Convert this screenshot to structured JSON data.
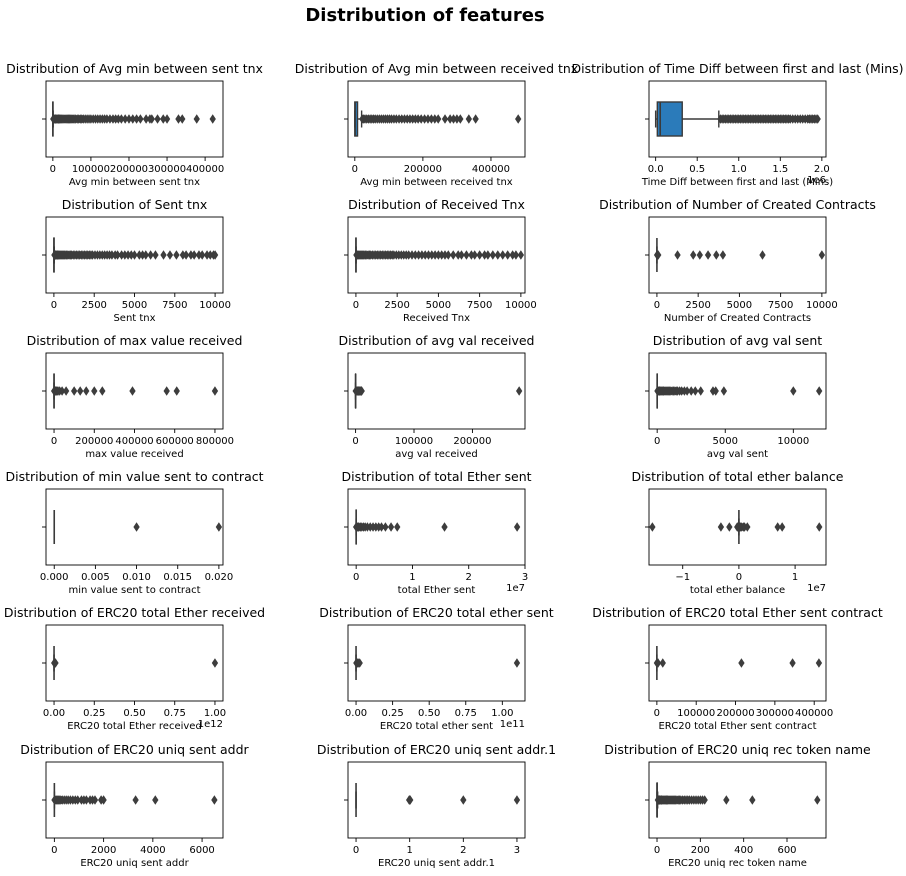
{
  "figure_title": "Distribution of features",
  "colors": {
    "box_fill": "#2b7bba",
    "box_line": "#3a3a3a",
    "flier": "#3d3d3d",
    "axis": "#000000"
  },
  "chart_data": [
    {
      "type": "boxplot",
      "orientation": "horizontal",
      "title": "Distribution of Avg min between sent tnx",
      "xlabel": "Avg min between sent tnx",
      "xlim": [
        -18000,
        447000
      ],
      "ticks": [
        0,
        100000,
        200000,
        300000,
        400000
      ],
      "tick_labels": [
        "0",
        "100000",
        "200000",
        "300000",
        "400000"
      ],
      "box": {
        "q1": 0,
        "median": 5,
        "q3": 300,
        "whisker_low": 0,
        "whisker_high": 800
      },
      "fliers": [
        1000,
        2500,
        4000,
        6000,
        8000,
        10000,
        12000,
        14000,
        16000,
        18000,
        20000,
        23000,
        26000,
        29000,
        32000,
        35000,
        38000,
        41000,
        44000,
        47000,
        50000,
        53000,
        56000,
        60000,
        64000,
        68000,
        72000,
        76000,
        80000,
        85000,
        90000,
        95000,
        100000,
        106000,
        112000,
        118000,
        124000,
        130000,
        136000,
        142000,
        150000,
        158000,
        165000,
        172000,
        180000,
        190000,
        200000,
        210000,
        220000,
        230000,
        245000,
        255000,
        260000,
        275000,
        290000,
        300000,
        330000,
        340000,
        378000,
        420000
      ]
    },
    {
      "type": "boxplot",
      "orientation": "horizontal",
      "title": "Distribution of Avg min between received tnx",
      "xlabel": "Avg min between received tnx",
      "xlim": [
        -20000,
        500000
      ],
      "ticks": [
        0,
        200000,
        400000
      ],
      "tick_labels": [
        "0",
        "200000",
        "400000"
      ],
      "box": {
        "q1": 0,
        "median": 1000,
        "q3": 8000,
        "whisker_low": 0,
        "whisker_high": 20000
      },
      "fliers": [
        22000,
        26000,
        30000,
        35000,
        40000,
        45000,
        50000,
        55000,
        60000,
        66000,
        72000,
        78000,
        84000,
        90000,
        96000,
        102000,
        108000,
        115000,
        122000,
        130000,
        138000,
        146000,
        154000,
        162000,
        170000,
        178000,
        186000,
        195000,
        205000,
        215000,
        225000,
        235000,
        245000,
        265000,
        280000,
        290000,
        300000,
        310000,
        335000,
        355000,
        480000
      ]
    },
    {
      "type": "boxplot",
      "orientation": "horizontal",
      "title": "Distribution of Time Diff between first and last (Mins)",
      "xlabel": "Time Diff between first and last (Mins)",
      "xlim": [
        -80000,
        2050000
      ],
      "ticks": [
        0,
        500000,
        1000000,
        1500000,
        2000000
      ],
      "tick_labels": [
        "0.0",
        "0.5",
        "1.0",
        "1.5",
        "2.0"
      ],
      "offset_label": "1e6",
      "box": {
        "q1": 20000,
        "median": 55000,
        "q3": 320000,
        "whisker_low": 0,
        "whisker_high": 760000
      },
      "fliers": [
        780000,
        800000,
        820000,
        840000,
        860000,
        880000,
        900000,
        920000,
        940000,
        960000,
        980000,
        1000000,
        1020000,
        1040000,
        1060000,
        1080000,
        1100000,
        1120000,
        1140000,
        1160000,
        1180000,
        1200000,
        1220000,
        1240000,
        1260000,
        1280000,
        1300000,
        1320000,
        1340000,
        1360000,
        1380000,
        1400000,
        1420000,
        1440000,
        1460000,
        1480000,
        1500000,
        1520000,
        1540000,
        1560000,
        1580000,
        1600000,
        1620000,
        1650000,
        1680000,
        1710000,
        1740000,
        1770000,
        1800000,
        1830000,
        1850000,
        1870000,
        1890000,
        1910000,
        1930000,
        1950000
      ]
    },
    {
      "type": "boxplot",
      "orientation": "horizontal",
      "title": "Distribution of Sent tnx",
      "xlabel": "Sent tnx",
      "xlim": [
        -490,
        10490
      ],
      "ticks": [
        0,
        2500,
        5000,
        7500,
        10000
      ],
      "tick_labels": [
        "0",
        "2500",
        "5000",
        "7500",
        "10000"
      ],
      "box": {
        "q1": 1,
        "median": 3,
        "q3": 10,
        "whisker_low": 0,
        "whisker_high": 25
      },
      "fliers": [
        30,
        50,
        80,
        120,
        160,
        200,
        250,
        300,
        350,
        400,
        460,
        520,
        580,
        640,
        700,
        780,
        860,
        940,
        1020,
        1100,
        1200,
        1300,
        1400,
        1500,
        1600,
        1700,
        1800,
        1900,
        2000,
        2100,
        2200,
        2300,
        2400,
        2550,
        2700,
        2850,
        3000,
        3150,
        3300,
        3450,
        3600,
        3800,
        3950,
        4200,
        4400,
        4600,
        4800,
        5000,
        5300,
        5500,
        5700,
        6000,
        6300,
        6800,
        7200,
        7600,
        8000,
        8200,
        8500,
        8700,
        9000,
        9200,
        9500,
        9700,
        9900,
        10000
      ]
    },
    {
      "type": "boxplot",
      "orientation": "horizontal",
      "title": "Distribution of Received Tnx",
      "xlabel": "Received Tnx",
      "xlim": [
        -480,
        10250
      ],
      "ticks": [
        0,
        2500,
        5000,
        7500,
        10000
      ],
      "tick_labels": [
        "0",
        "2500",
        "5000",
        "7500",
        "10000"
      ],
      "box": {
        "q1": 1,
        "median": 2,
        "q3": 6,
        "whisker_low": 0,
        "whisker_high": 15
      },
      "fliers": [
        30,
        60,
        100,
        150,
        200,
        260,
        320,
        380,
        440,
        500,
        580,
        660,
        740,
        820,
        900,
        1000,
        1100,
        1200,
        1300,
        1400,
        1500,
        1600,
        1700,
        1800,
        1900,
        2000,
        2100,
        2200,
        2300,
        2450,
        2600,
        2750,
        2900,
        3050,
        3200,
        3400,
        3600,
        3800,
        4000,
        4200,
        4400,
        4600,
        4800,
        5000,
        5200,
        5400,
        5600,
        5900,
        6200,
        6400,
        6700,
        7000,
        7200,
        7500,
        7800,
        8000,
        8300,
        8600,
        8900,
        9200,
        9500,
        9700,
        10000
      ]
    },
    {
      "type": "boxplot",
      "orientation": "horizontal",
      "title": "Distribution of Number of Created Contracts",
      "xlabel": "Number of Created Contracts",
      "xlim": [
        -480,
        10250
      ],
      "ticks": [
        0,
        2500,
        5000,
        7500,
        10000
      ],
      "tick_labels": [
        "0",
        "2500",
        "5000",
        "7500",
        "10000"
      ],
      "box": {
        "q1": 0,
        "median": 0,
        "q3": 0,
        "whisker_low": 0,
        "whisker_high": 0
      },
      "fliers": [
        10,
        40,
        80,
        1250,
        2200,
        2600,
        3100,
        3600,
        4000,
        6400,
        10000
      ]
    },
    {
      "type": "boxplot",
      "orientation": "horizontal",
      "title": "Distribution of max value received",
      "xlabel": "max value received",
      "xlim": [
        -40000,
        840000
      ],
      "ticks": [
        0,
        200000,
        400000,
        600000,
        800000
      ],
      "tick_labels": [
        "0",
        "200000",
        "400000",
        "600000",
        "800000"
      ],
      "box": {
        "q1": 0,
        "median": 1,
        "q3": 50,
        "whisker_low": 0,
        "whisker_high": 100
      },
      "fliers": [
        500,
        1500,
        3000,
        5000,
        8000,
        11000,
        15000,
        20000,
        28000,
        40000,
        60000,
        100000,
        130000,
        160000,
        200000,
        240000,
        390000,
        560000,
        610000,
        800000
      ]
    },
    {
      "type": "boxplot",
      "orientation": "horizontal",
      "title": "Distribution of avg val received",
      "xlabel": "avg val received",
      "xlim": [
        -13000,
        290000
      ],
      "ticks": [
        0,
        100000,
        200000
      ],
      "tick_labels": [
        "0",
        "100000",
        "200000"
      ],
      "box": {
        "q1": 0,
        "median": 1,
        "q3": 30,
        "whisker_low": 0,
        "whisker_high": 60
      },
      "fliers": [
        200,
        700,
        1500,
        2500,
        3500,
        4500,
        5500,
        6500,
        7500,
        8500,
        9500,
        10500,
        280000
      ]
    },
    {
      "type": "boxplot",
      "orientation": "horizontal",
      "title": "Distribution of avg val sent",
      "xlabel": "avg val sent",
      "xlim": [
        -600,
        12400
      ],
      "ticks": [
        0,
        5000,
        10000
      ],
      "tick_labels": [
        "0",
        "5000",
        "10000"
      ],
      "box": {
        "q1": 0,
        "median": 0,
        "q3": 5,
        "whisker_low": 0,
        "whisker_high": 10
      },
      "fliers": [
        20,
        50,
        100,
        150,
        200,
        260,
        320,
        380,
        440,
        500,
        580,
        660,
        740,
        820,
        900,
        1000,
        1100,
        1200,
        1300,
        1400,
        1500,
        1650,
        1800,
        2000,
        2200,
        2500,
        2800,
        3200,
        4100,
        4300,
        4900,
        10000,
        11900
      ]
    },
    {
      "type": "boxplot",
      "orientation": "horizontal",
      "title": "Distribution of min value sent to contract",
      "xlabel": "min value sent to contract",
      "xlim": [
        -0.001,
        0.0205
      ],
      "ticks": [
        0,
        0.005,
        0.01,
        0.015,
        0.02
      ],
      "tick_labels": [
        "0.000",
        "0.005",
        "0.010",
        "0.015",
        "0.020"
      ],
      "box": {
        "q1": 0,
        "median": 0,
        "q3": 0,
        "whisker_low": 0,
        "whisker_high": 0
      },
      "fliers": [
        0.01,
        0.02
      ]
    },
    {
      "type": "boxplot",
      "orientation": "horizontal",
      "title": "Distribution of total Ether sent",
      "xlabel": "total Ether sent",
      "xlim": [
        -1450000,
        30000000
      ],
      "ticks": [
        0,
        10000000,
        20000000,
        30000000
      ],
      "tick_labels": [
        "0",
        "1",
        "2",
        "3"
      ],
      "offset_label": "1e7",
      "box": {
        "q1": 0,
        "median": 5,
        "q3": 200,
        "whisker_low": 0,
        "whisker_high": 500
      },
      "fliers": [
        5000,
        30000,
        100000,
        200000,
        350000,
        500000,
        750000,
        1000000,
        1300000,
        1600000,
        2000000,
        2500000,
        3000000,
        3500000,
        4000000,
        4500000,
        5200000,
        6200000,
        7300000,
        15700000,
        28600000
      ]
    },
    {
      "type": "boxplot",
      "orientation": "horizontal",
      "title": "Distribution of total ether balance",
      "xlabel": "total ether balance",
      "xlim": [
        -16000000,
        15500000
      ],
      "ticks": [
        -10000000,
        0,
        10000000
      ],
      "tick_labels": [
        "−1",
        "0",
        "1"
      ],
      "offset_label": "1e7",
      "box": {
        "q1": 0,
        "median": 0,
        "q3": 0,
        "whisker_low": -10,
        "whisker_high": 10
      },
      "fliers": [
        -15400000,
        -3200000,
        -1700000,
        -300000,
        -150000,
        50000,
        150000,
        300000,
        500000,
        800000,
        1000000,
        1500000,
        6900000,
        7700000,
        14300000
      ]
    },
    {
      "type": "boxplot",
      "orientation": "horizontal",
      "title": "Distribution of  ERC20 total Ether received",
      "xlabel": "ERC20 total Ether received",
      "xlim": [
        -50000000000,
        1050000000000
      ],
      "ticks": [
        0,
        250000000000,
        500000000000,
        750000000000,
        1000000000000
      ],
      "tick_labels": [
        "0.00",
        "0.25",
        "0.50",
        "0.75",
        "1.00"
      ],
      "offset_label": "1e12",
      "box": {
        "q1": 0,
        "median": 0,
        "q3": 0,
        "whisker_low": 0,
        "whisker_high": 0
      },
      "fliers": [
        1000000000,
        3000000000,
        6000000000,
        9000000000,
        1000000000000
      ]
    },
    {
      "type": "boxplot",
      "orientation": "horizontal",
      "title": "Distribution of  ERC20 total ether sent",
      "xlabel": "ERC20 total ether sent",
      "xlim": [
        -5500000000,
        115500000000
      ],
      "ticks": [
        0,
        25000000000,
        50000000000,
        75000000000,
        100000000000
      ],
      "tick_labels": [
        "0.00",
        "0.25",
        "0.50",
        "0.75",
        "1.00"
      ],
      "offset_label": "1e11",
      "box": {
        "q1": 0,
        "median": 0,
        "q3": 0,
        "whisker_low": 0,
        "whisker_high": 0
      },
      "fliers": [
        200000000,
        500000000,
        1000000000,
        1500000000,
        2500000000,
        110000000000
      ]
    },
    {
      "type": "boxplot",
      "orientation": "horizontal",
      "title": "Distribution of  ERC20 total Ether sent contract",
      "xlabel": "ERC20 total Ether sent contract",
      "xlim": [
        -20000,
        430000
      ],
      "ticks": [
        0,
        100000,
        200000,
        300000,
        400000
      ],
      "tick_labels": [
        "0",
        "100000",
        "200000",
        "300000",
        "400000"
      ],
      "box": {
        "q1": 0,
        "median": 0,
        "q3": 0,
        "whisker_low": 0,
        "whisker_high": 0
      },
      "fliers": [
        100,
        1000,
        3000,
        15000,
        215000,
        345000,
        412000
      ]
    },
    {
      "type": "boxplot",
      "orientation": "horizontal",
      "title": "Distribution of  ERC20 uniq sent addr",
      "xlabel": "ERC20 uniq sent addr",
      "xlim": [
        -340,
        6850
      ],
      "ticks": [
        0,
        2000,
        4000,
        6000
      ],
      "tick_labels": [
        "0",
        "2000",
        "4000",
        "6000"
      ],
      "box": {
        "q1": 0,
        "median": 0,
        "q3": 0,
        "whisker_low": 0,
        "whisker_high": 0
      },
      "fliers": [
        5,
        20,
        40,
        80,
        120,
        160,
        200,
        260,
        320,
        400,
        480,
        560,
        650,
        750,
        850,
        950,
        1100,
        1200,
        1300,
        1450,
        1550,
        1650,
        1900,
        2000,
        3300,
        4100,
        6500
      ]
    },
    {
      "type": "boxplot",
      "orientation": "horizontal",
      "title": "Distribution of  ERC20 uniq sent addr.1",
      "xlabel": "ERC20 uniq sent addr.1",
      "xlim": [
        -0.15,
        3.15
      ],
      "ticks": [
        0,
        1,
        2,
        3
      ],
      "tick_labels": [
        "0",
        "1",
        "2",
        "3"
      ],
      "box": {
        "q1": 0,
        "median": 0,
        "q3": 0,
        "whisker_low": 0,
        "whisker_high": 0
      },
      "fliers": [
        0.99,
        1.0,
        1.01,
        2,
        3
      ]
    },
    {
      "type": "boxplot",
      "orientation": "horizontal",
      "title": "Distribution of  ERC20 uniq rec token name",
      "xlabel": "ERC20 uniq rec token name",
      "xlim": [
        -37,
        780
      ],
      "ticks": [
        0,
        200,
        400,
        600
      ],
      "tick_labels": [
        "0",
        "200",
        "400",
        "600"
      ],
      "box": {
        "q1": 0,
        "median": 0,
        "q3": 1,
        "whisker_low": 0,
        "whisker_high": 3
      },
      "fliers": [
        4,
        6,
        8,
        10,
        13,
        16,
        19,
        22,
        26,
        30,
        34,
        38,
        42,
        46,
        50,
        55,
        60,
        65,
        70,
        75,
        80,
        86,
        92,
        98,
        104,
        110,
        118,
        126,
        134,
        142,
        150,
        160,
        170,
        180,
        190,
        200,
        210,
        220,
        320,
        440,
        740
      ]
    }
  ]
}
